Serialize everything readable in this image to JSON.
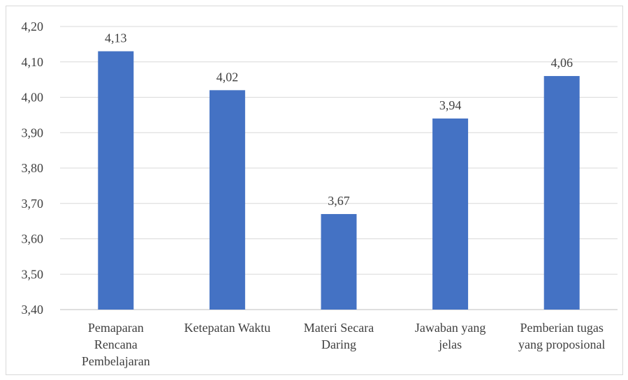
{
  "chart_data": {
    "type": "bar",
    "categories": [
      [
        "Pemaparan",
        "Rencana",
        "Pembelajaran"
      ],
      [
        "Ketepatan Waktu"
      ],
      [
        "Materi Secara",
        "Daring"
      ],
      [
        "Jawaban yang",
        "jelas"
      ],
      [
        "Pemberian tugas",
        "yang proposional"
      ]
    ],
    "values": [
      4.13,
      4.02,
      3.67,
      3.94,
      4.06
    ],
    "value_labels": [
      "4,13",
      "4,02",
      "3,67",
      "3,94",
      "4,06"
    ],
    "yticks": [
      "3,40",
      "3,50",
      "3,60",
      "3,70",
      "3,80",
      "3,90",
      "4,00",
      "4,10",
      "4,20"
    ],
    "ytick_values": [
      3.4,
      3.5,
      3.6,
      3.7,
      3.8,
      3.9,
      4.0,
      4.1,
      4.2
    ],
    "ylim": [
      3.4,
      4.2
    ],
    "grid": true,
    "bar_color": "#4472C4",
    "grid_color": "#d9d9d9"
  }
}
